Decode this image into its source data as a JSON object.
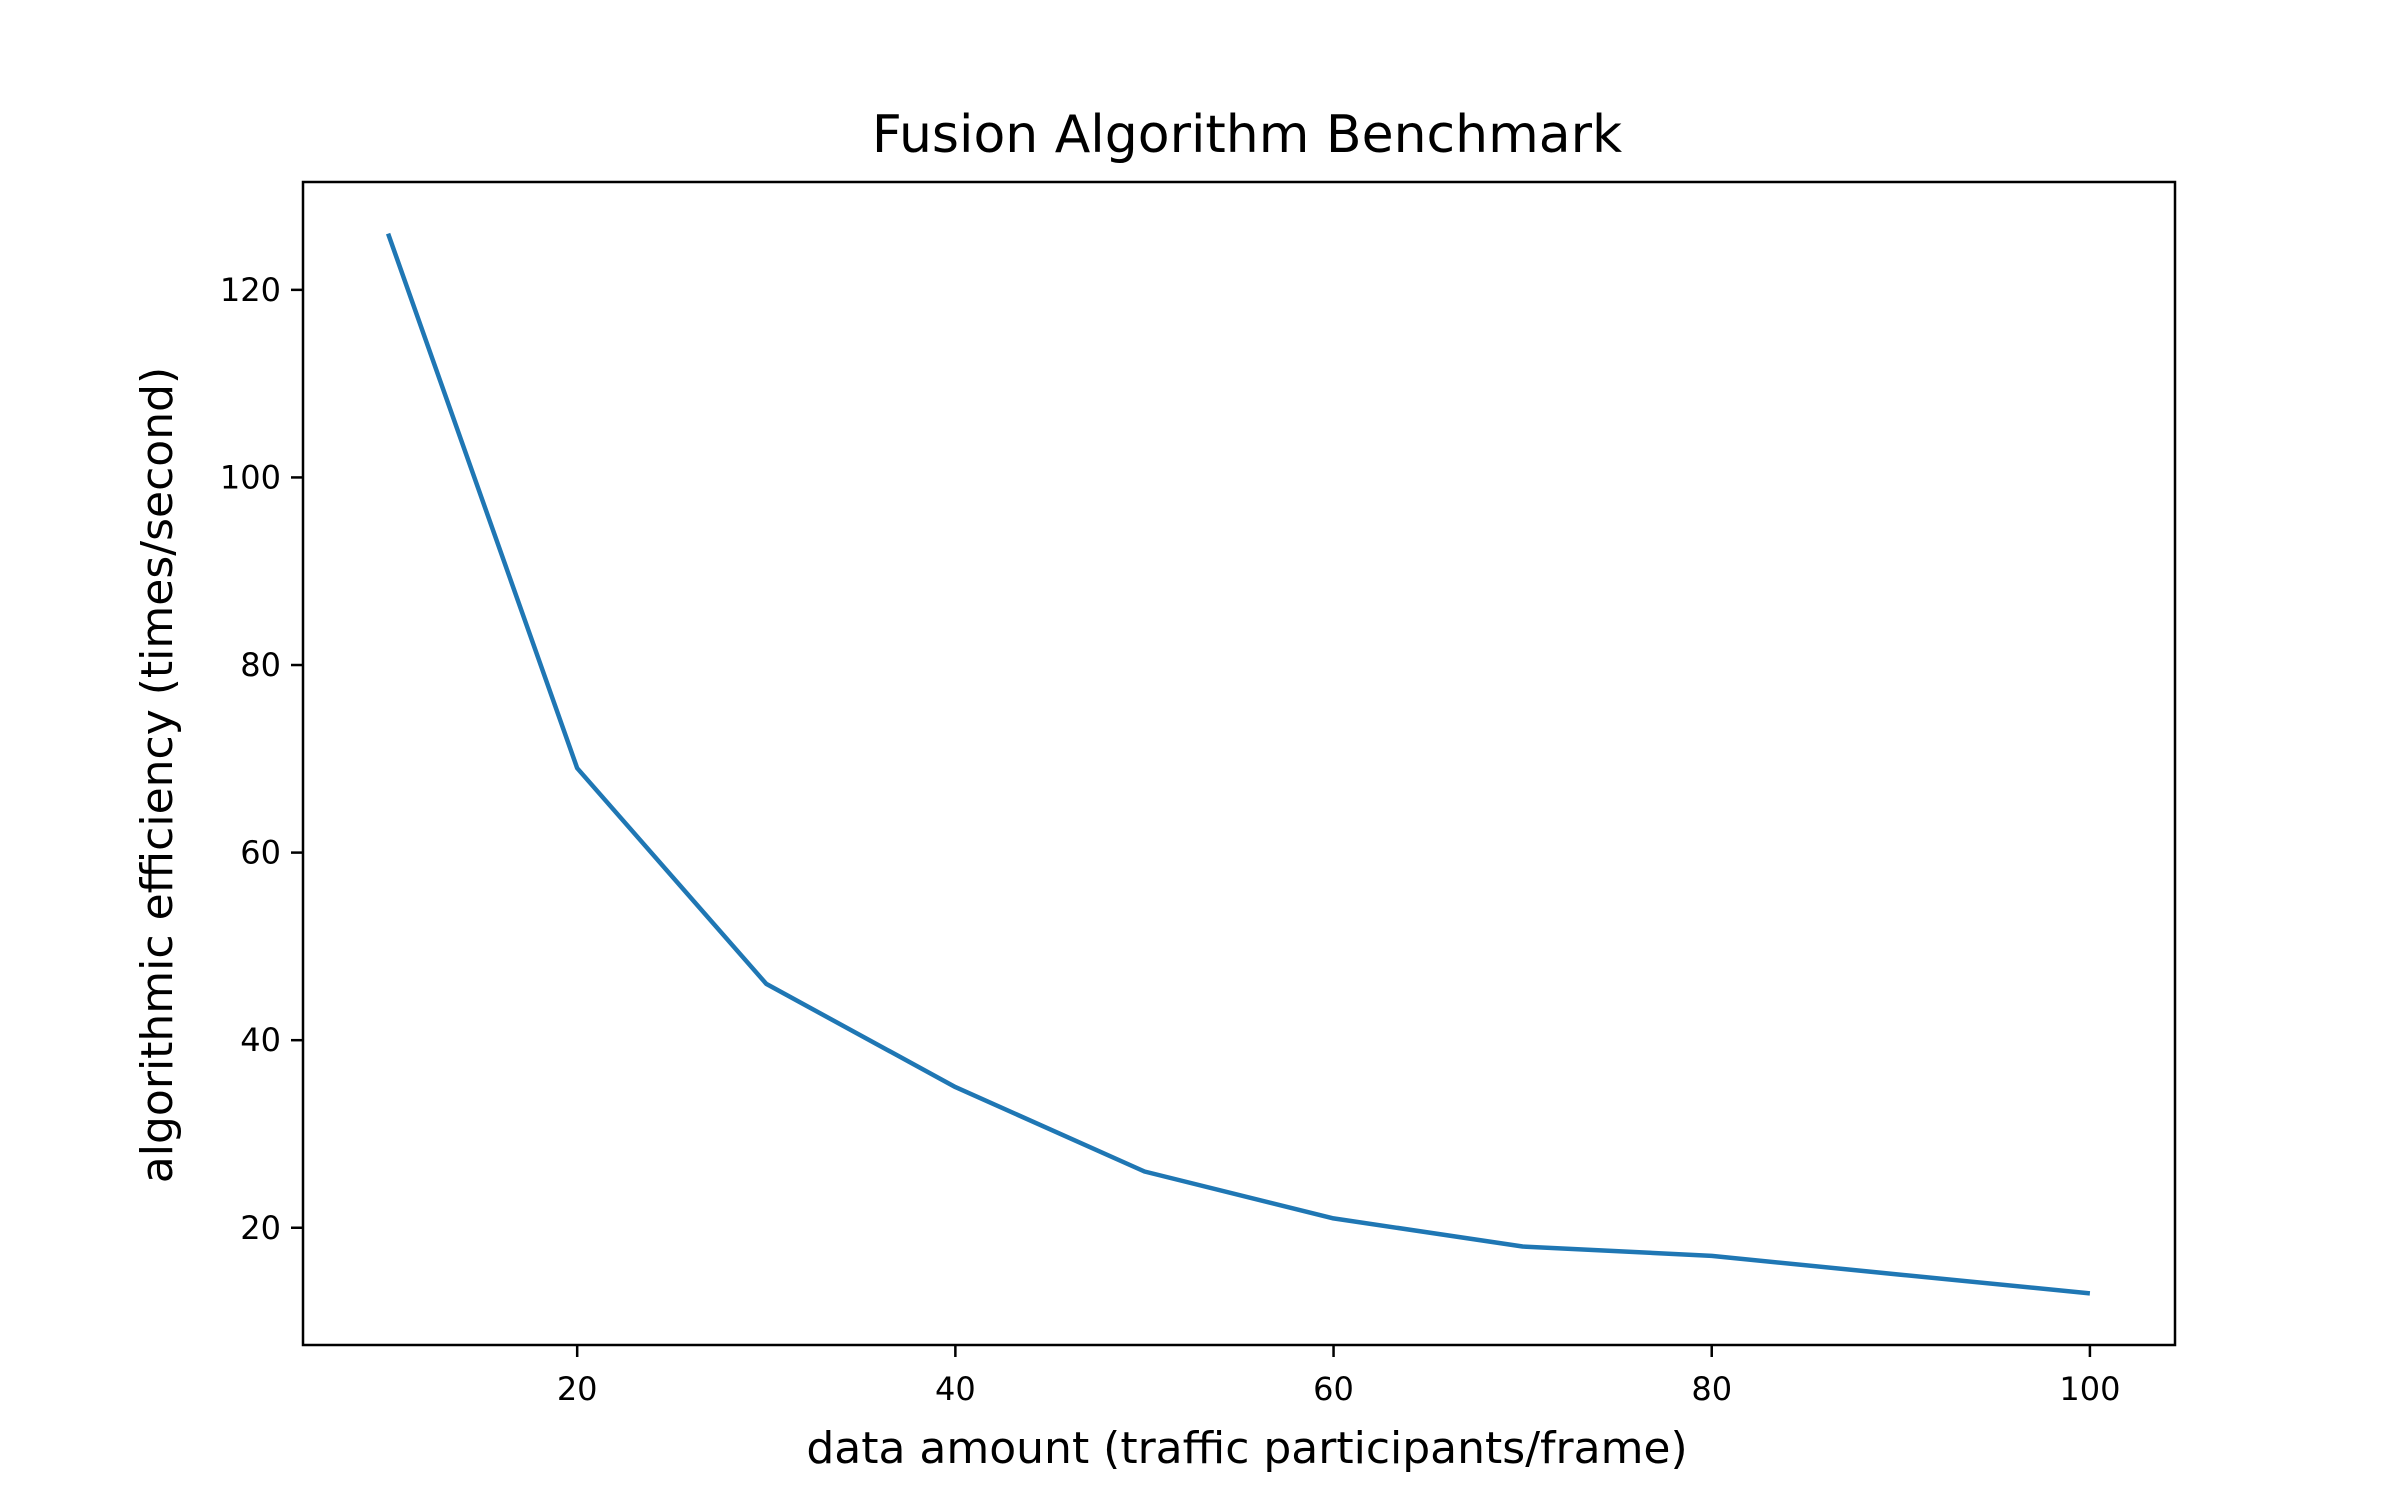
{
  "chart_data": {
    "type": "line",
    "title": "Fusion Algorithm Benchmark",
    "xlabel": "data amount (traffic participants/frame)",
    "ylabel": "algorithmic efficiency (times/second)",
    "xlim": [
      5.5,
      104.5
    ],
    "ylim": [
      7.5,
      131.5
    ],
    "xticks": [
      20,
      40,
      60,
      80,
      100
    ],
    "yticks": [
      20,
      40,
      60,
      80,
      100,
      120
    ],
    "grid": false,
    "series": [
      {
        "color": "#1f77b4",
        "x": [
          10,
          20,
          30,
          40,
          50,
          60,
          70,
          80,
          90,
          100
        ],
        "y": [
          126,
          69,
          46,
          35,
          26,
          21,
          18,
          17,
          15,
          13
        ]
      }
    ]
  }
}
